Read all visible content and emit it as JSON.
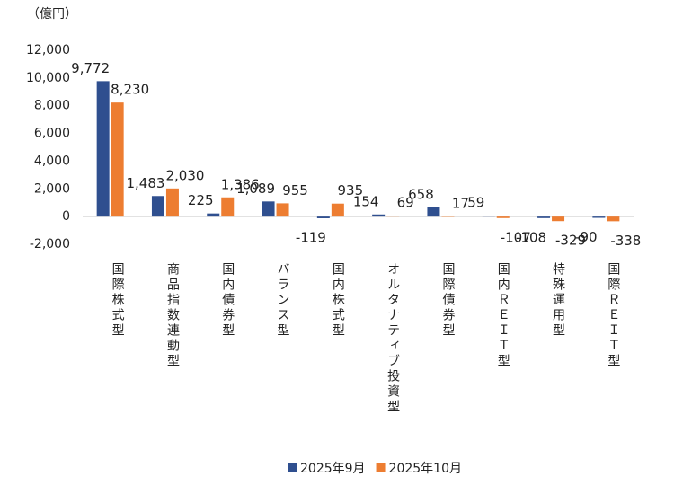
{
  "chart_data": {
    "type": "bar",
    "y_unit_label": "（億円）",
    "categories": [
      "国際株式型",
      "商品指数連動型",
      "国内債券型",
      "バランス型",
      "国内株式型",
      "オルタナティブ投資型",
      "国際債券型",
      "国内ＲＥＩＴ型",
      "特殊運用型",
      "国際ＲＥＩＴ型"
    ],
    "series": [
      {
        "name": "2025年9月",
        "color": "#2f4f8f",
        "values": [
          9772,
          1483,
          225,
          1089,
          -119,
          154,
          658,
          59,
          -108,
          -90
        ],
        "value_labels": [
          "9,772",
          "1,483",
          "225",
          "1,089",
          "-119",
          "154",
          "658",
          "59",
          "-108",
          "-90"
        ]
      },
      {
        "name": "2025年10月",
        "color": "#ed7d31",
        "values": [
          8230,
          2030,
          1386,
          955,
          935,
          69,
          17,
          -107,
          -329,
          -338
        ],
        "value_labels": [
          "8,230",
          "2,030",
          "1,386",
          "955",
          "935",
          "69",
          "17",
          "-107",
          "-329",
          "-338"
        ]
      }
    ],
    "ylim": [
      -2000,
      12000
    ],
    "yticks": [
      {
        "value": -2000,
        "label": "-2,000"
      },
      0,
      {
        "value": 2000,
        "label": "2,000"
      },
      {
        "value": 4000,
        "label": "4,000"
      },
      {
        "value": 6000,
        "label": "6,000"
      },
      {
        "value": 8000,
        "label": "8,000"
      },
      {
        "value": 10000,
        "label": "10,000"
      },
      {
        "value": 12000,
        "label": "12,000"
      }
    ],
    "negative_label_color": "#ff0000",
    "legend": "bottom"
  }
}
